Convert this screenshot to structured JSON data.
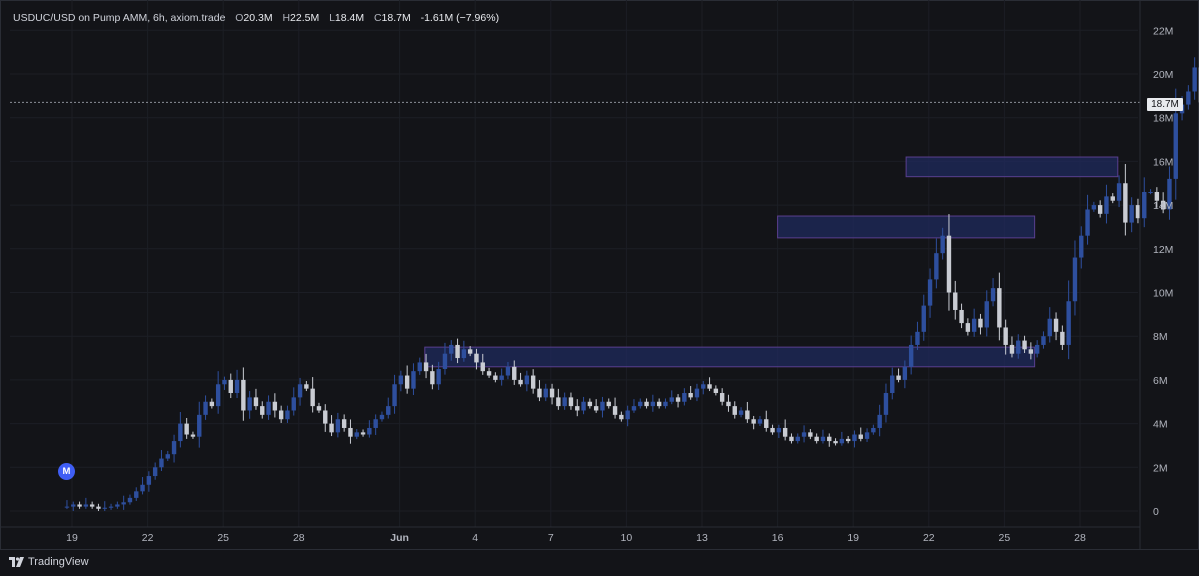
{
  "legend": {
    "symbol": "USDUC/USD on Pump AMM, 6h, axiom.trade",
    "open_label": "O",
    "open_value": "20.3M",
    "high_label": "H",
    "high_value": "22.5M",
    "low_label": "L",
    "low_value": "18.4M",
    "close_label": "C",
    "close_value": "18.7M",
    "change": "-1.61M (−7.96%)"
  },
  "price_tag": "18.7M",
  "marker_label": "M",
  "footer": {
    "brand": "TradingView"
  },
  "colors": {
    "background": "#131418",
    "up_candle": "#2e4f9e",
    "down_candle": "#c9ccd3",
    "zone_fill": "#1f2a5c",
    "zone_border": "#5a3f8f",
    "grid": "#1c1e25",
    "marker": "#3f5ef5"
  },
  "chart_data": {
    "type": "candlestick",
    "title": "USDUC/USD on Pump AMM, 6h, axiom.trade",
    "xlabel": "",
    "ylabel": "",
    "ylim": [
      -0.5,
      23
    ],
    "grid": true,
    "y_ticks": [
      0,
      2,
      4,
      6,
      8,
      10,
      12,
      14,
      16,
      18,
      20,
      22
    ],
    "y_tick_labels": [
      "0",
      "2M",
      "4M",
      "6M",
      "8M",
      "10M",
      "12M",
      "14M",
      "16M",
      "18M",
      "20M",
      "22M"
    ],
    "x_ticks": [
      {
        "day": 0,
        "label": "19"
      },
      {
        "day": 3,
        "label": "22"
      },
      {
        "day": 6,
        "label": "25"
      },
      {
        "day": 9,
        "label": "28"
      },
      {
        "day": 13,
        "label": "Jun"
      },
      {
        "day": 16,
        "label": "4"
      },
      {
        "day": 19,
        "label": "7"
      },
      {
        "day": 22,
        "label": "10"
      },
      {
        "day": 25,
        "label": "13"
      },
      {
        "day": 28,
        "label": "16"
      },
      {
        "day": 31,
        "label": "19"
      },
      {
        "day": 34,
        "label": "22"
      },
      {
        "day": 37,
        "label": "25"
      },
      {
        "day": 40,
        "label": "28"
      }
    ],
    "last_price": 18.7,
    "zones": [
      {
        "x0": 14.0,
        "x1": 38.2,
        "y0": 6.6,
        "y1": 7.5
      },
      {
        "x0": 28.0,
        "x1": 38.2,
        "y0": 12.5,
        "y1": 13.5
      },
      {
        "x0": 33.1,
        "x1": 41.5,
        "y0": 15.3,
        "y1": 16.2
      }
    ],
    "close_series": [
      0.2,
      0.3,
      0.2,
      0.3,
      0.2,
      0.1,
      0.15,
      0.2,
      0.3,
      0.4,
      0.6,
      0.9,
      1.2,
      1.6,
      2.0,
      2.4,
      2.6,
      3.2,
      4.0,
      3.5,
      3.4,
      4.4,
      5.0,
      4.8,
      5.8,
      6.0,
      5.4,
      6.0,
      4.6,
      5.2,
      4.8,
      4.4,
      5.0,
      4.6,
      4.2,
      4.6,
      5.2,
      5.8,
      5.6,
      4.8,
      4.6,
      4.0,
      3.6,
      4.2,
      3.8,
      3.4,
      3.6,
      3.5,
      3.8,
      4.2,
      4.4,
      4.8,
      5.8,
      6.2,
      5.6,
      6.4,
      6.8,
      6.4,
      5.8,
      6.5,
      7.2,
      7.6,
      7.0,
      7.4,
      7.2,
      6.8,
      6.4,
      6.2,
      6.0,
      6.2,
      6.6,
      6.0,
      5.8,
      6.2,
      5.6,
      5.2,
      5.6,
      5.2,
      4.8,
      5.2,
      4.8,
      4.6,
      5.0,
      4.8,
      4.6,
      5.0,
      4.8,
      4.4,
      4.2,
      4.6,
      4.8,
      5.0,
      4.8,
      5.0,
      4.8,
      5.0,
      5.2,
      5.0,
      5.4,
      5.2,
      5.6,
      5.8,
      5.6,
      5.4,
      5.0,
      4.8,
      4.4,
      4.6,
      4.2,
      4.0,
      4.2,
      3.8,
      3.6,
      3.8,
      3.4,
      3.2,
      3.4,
      3.6,
      3.4,
      3.2,
      3.4,
      3.2,
      3.1,
      3.3,
      3.2,
      3.5,
      3.3,
      3.6,
      3.8,
      4.4,
      5.4,
      6.2,
      6.0,
      6.6,
      7.6,
      8.2,
      9.4,
      10.6,
      11.8,
      12.6,
      10.0,
      9.2,
      8.6,
      8.2,
      8.8,
      8.4,
      9.6,
      10.2,
      8.4,
      7.6,
      7.2,
      7.8,
      7.4,
      7.2,
      7.6,
      8.0,
      8.8,
      8.2,
      7.6,
      9.6,
      11.6,
      12.6,
      13.8,
      14.0,
      13.6,
      14.4,
      14.2,
      15.0,
      13.2,
      14.0,
      13.4,
      14.6,
      14.6,
      14.2,
      13.8,
      15.2,
      18.2,
      18.6,
      19.2,
      20.3,
      18.7
    ]
  }
}
